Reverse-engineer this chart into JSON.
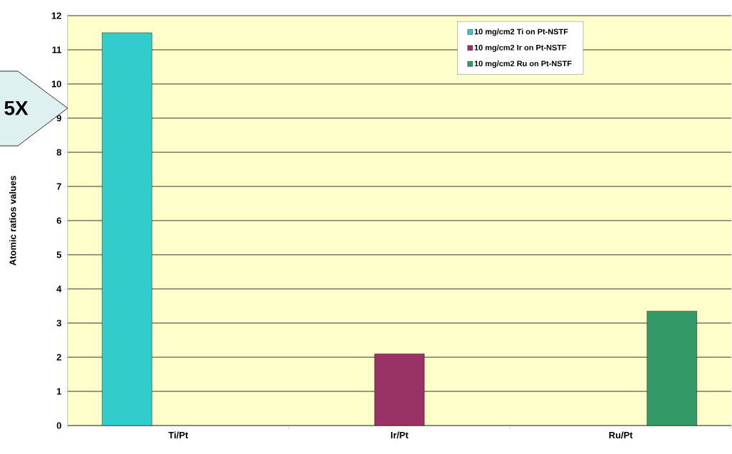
{
  "chart_data": {
    "type": "bar",
    "categories": [
      "Ti/Pt",
      "Ir/Pt",
      "Ru/Pt"
    ],
    "series": [
      {
        "name": "10 mg/cm2 Ti on Pt-NSTF",
        "color": "#33cccc",
        "values": [
          11.5,
          null,
          null
        ]
      },
      {
        "name": "10 mg/cm2 Ir on Pt-NSTF",
        "color": "#993366",
        "values": [
          null,
          2.1,
          null
        ]
      },
      {
        "name": "10 mg/cm2 Ru on Pt-NSTF",
        "color": "#339966",
        "values": [
          null,
          null,
          3.35
        ]
      }
    ],
    "ylabel": "Atomic ratios values",
    "ylim": [
      0,
      12
    ],
    "yticks": [
      0,
      1,
      2,
      3,
      4,
      5,
      6,
      7,
      8,
      9,
      10,
      11,
      12
    ],
    "grid": "y",
    "legend": "top right",
    "annotations": [
      "5X"
    ]
  }
}
